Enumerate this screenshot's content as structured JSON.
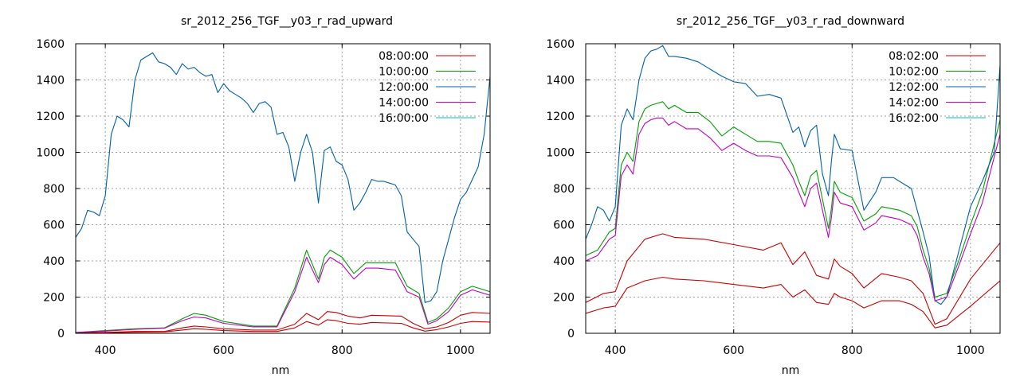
{
  "chart_data": [
    {
      "type": "line",
      "title": "sr_2012_256_TGF__y03_r_rad_upward",
      "xlabel": "nm",
      "ylabel": "",
      "xlim": [
        350,
        1050
      ],
      "ylim": [
        0,
        1600
      ],
      "xticks": [
        400,
        600,
        800,
        1000
      ],
      "yticks": [
        0,
        200,
        400,
        600,
        800,
        1000,
        1200,
        1400,
        1600
      ],
      "grid": true,
      "legend_position": "top-right",
      "series": [
        {
          "name": "08:00:00",
          "color": "#cc0000",
          "x": [
            350,
            400,
            450,
            500,
            530,
            550,
            570,
            600,
            650,
            690,
            720,
            740,
            760,
            775,
            790,
            810,
            830,
            850,
            900,
            920,
            940,
            960,
            980,
            1000,
            1020,
            1050
          ],
          "y": [
            2,
            5,
            10,
            10,
            30,
            40,
            35,
            25,
            18,
            18,
            50,
            110,
            75,
            120,
            115,
            95,
            85,
            100,
            95,
            55,
            25,
            35,
            60,
            100,
            115,
            110
          ]
        },
        {
          "name": "08:00:00",
          "color": "#cc0000",
          "x": [
            350,
            400,
            450,
            500,
            530,
            550,
            570,
            600,
            650,
            690,
            720,
            740,
            760,
            775,
            790,
            810,
            830,
            850,
            900,
            920,
            940,
            960,
            980,
            1000,
            1020,
            1050
          ],
          "y": [
            1,
            3,
            6,
            8,
            18,
            25,
            22,
            15,
            10,
            10,
            30,
            65,
            45,
            75,
            70,
            55,
            50,
            60,
            55,
            30,
            12,
            20,
            35,
            55,
            65,
            62
          ]
        },
        {
          "name": "10:00:00",
          "color": "#00a000",
          "x": [
            350,
            400,
            450,
            500,
            530,
            550,
            570,
            600,
            650,
            690,
            720,
            740,
            760,
            770,
            780,
            800,
            820,
            840,
            860,
            890,
            910,
            930,
            945,
            960,
            980,
            1000,
            1020,
            1050
          ],
          "y": [
            5,
            15,
            25,
            30,
            80,
            110,
            100,
            65,
            40,
            40,
            250,
            460,
            300,
            420,
            460,
            420,
            330,
            390,
            390,
            390,
            260,
            220,
            60,
            80,
            140,
            230,
            260,
            230
          ]
        },
        {
          "name": "12:00:00",
          "color": "#0060ad",
          "x": [
            350,
            360,
            370,
            380,
            390,
            400,
            410,
            420,
            430,
            440,
            450,
            460,
            470,
            480,
            490,
            500,
            510,
            520,
            530,
            540,
            550,
            560,
            570,
            580,
            590,
            600,
            610,
            620,
            630,
            640,
            650,
            660,
            670,
            680,
            690,
            700,
            710,
            720,
            730,
            740,
            750,
            760,
            765,
            770,
            780,
            790,
            800,
            810,
            820,
            830,
            840,
            850,
            860,
            870,
            880,
            890,
            900,
            910,
            920,
            930,
            940,
            950,
            960,
            970,
            980,
            990,
            1000,
            1010,
            1020,
            1030,
            1040,
            1050
          ],
          "y": [
            530,
            580,
            680,
            670,
            650,
            760,
            1100,
            1200,
            1180,
            1140,
            1400,
            1510,
            1530,
            1550,
            1500,
            1490,
            1470,
            1430,
            1490,
            1460,
            1470,
            1440,
            1420,
            1430,
            1330,
            1380,
            1340,
            1320,
            1300,
            1270,
            1220,
            1270,
            1280,
            1250,
            1100,
            1110,
            1030,
            840,
            1000,
            1100,
            1000,
            720,
            870,
            1010,
            1030,
            950,
            930,
            850,
            680,
            720,
            780,
            850,
            840,
            840,
            830,
            820,
            760,
            560,
            520,
            480,
            170,
            180,
            230,
            400,
            520,
            640,
            740,
            780,
            850,
            920,
            1100,
            1420
          ]
        },
        {
          "name": "14:00:00",
          "color": "#c000c0",
          "x": [
            350,
            400,
            450,
            500,
            530,
            550,
            570,
            600,
            650,
            690,
            720,
            740,
            760,
            770,
            780,
            800,
            820,
            840,
            860,
            890,
            910,
            930,
            945,
            960,
            980,
            1000,
            1020,
            1050
          ],
          "y": [
            4,
            12,
            22,
            28,
            70,
            90,
            85,
            55,
            35,
            35,
            230,
            420,
            280,
            380,
            420,
            380,
            300,
            360,
            360,
            350,
            230,
            200,
            50,
            70,
            120,
            210,
            240,
            210
          ]
        },
        {
          "name": "16:00:00",
          "color": "#00bfbf",
          "x": [],
          "y": []
        }
      ]
    },
    {
      "type": "line",
      "title": "sr_2012_256_TGF__y03_r_rad_downward",
      "xlabel": "nm",
      "ylabel": "",
      "xlim": [
        350,
        1050
      ],
      "ylim": [
        0,
        1600
      ],
      "xticks": [
        400,
        600,
        800,
        1000
      ],
      "yticks": [
        0,
        200,
        400,
        600,
        800,
        1000,
        1200,
        1400,
        1600
      ],
      "grid": true,
      "legend_position": "top-right",
      "series": [
        {
          "name": "08:02:00",
          "color": "#cc0000",
          "x": [
            350,
            380,
            400,
            420,
            450,
            480,
            500,
            550,
            600,
            650,
            680,
            700,
            720,
            740,
            760,
            770,
            780,
            800,
            820,
            850,
            880,
            900,
            920,
            940,
            960,
            1000,
            1050
          ],
          "y": [
            170,
            220,
            230,
            400,
            520,
            550,
            530,
            520,
            490,
            460,
            500,
            380,
            450,
            320,
            300,
            410,
            370,
            330,
            250,
            330,
            310,
            290,
            220,
            50,
            80,
            300,
            500
          ]
        },
        {
          "name": "08:02:00",
          "color": "#cc0000",
          "x": [
            350,
            380,
            400,
            420,
            450,
            480,
            500,
            550,
            600,
            650,
            680,
            700,
            720,
            740,
            760,
            770,
            780,
            800,
            820,
            850,
            880,
            900,
            920,
            940,
            960,
            1000,
            1050
          ],
          "y": [
            110,
            140,
            150,
            250,
            290,
            310,
            300,
            290,
            270,
            250,
            270,
            200,
            240,
            170,
            160,
            220,
            200,
            180,
            140,
            180,
            180,
            160,
            120,
            30,
            45,
            150,
            290
          ]
        },
        {
          "name": "10:02:00",
          "color": "#00a000",
          "x": [
            350,
            370,
            390,
            400,
            410,
            420,
            430,
            440,
            450,
            460,
            470,
            480,
            490,
            500,
            520,
            540,
            560,
            580,
            600,
            620,
            640,
            660,
            680,
            700,
            710,
            720,
            730,
            740,
            760,
            765,
            770,
            780,
            800,
            820,
            840,
            850,
            880,
            900,
            910,
            920,
            930,
            940,
            960,
            980,
            1000,
            1020,
            1050
          ],
          "y": [
            430,
            460,
            560,
            580,
            930,
            1000,
            950,
            1170,
            1240,
            1260,
            1270,
            1280,
            1240,
            1260,
            1220,
            1220,
            1170,
            1090,
            1140,
            1100,
            1060,
            1060,
            1050,
            930,
            840,
            760,
            870,
            900,
            580,
            690,
            840,
            780,
            750,
            620,
            660,
            700,
            680,
            650,
            590,
            460,
            360,
            200,
            220,
            400,
            600,
            780,
            1180
          ]
        },
        {
          "name": "12:02:00",
          "color": "#0060ad",
          "x": [
            350,
            360,
            370,
            380,
            390,
            400,
            410,
            420,
            430,
            440,
            450,
            460,
            470,
            480,
            490,
            500,
            520,
            540,
            560,
            580,
            600,
            620,
            640,
            660,
            680,
            700,
            710,
            720,
            730,
            740,
            750,
            760,
            765,
            770,
            780,
            800,
            820,
            840,
            850,
            870,
            890,
            900,
            910,
            920,
            930,
            940,
            950,
            960,
            980,
            1000,
            1020,
            1040,
            1050
          ],
          "y": [
            520,
            600,
            700,
            680,
            620,
            700,
            1150,
            1240,
            1180,
            1400,
            1520,
            1560,
            1570,
            1590,
            1530,
            1530,
            1520,
            1500,
            1460,
            1420,
            1390,
            1380,
            1310,
            1320,
            1300,
            1110,
            1140,
            1030,
            1120,
            1150,
            880,
            760,
            950,
            1100,
            1020,
            1010,
            680,
            780,
            860,
            860,
            820,
            800,
            680,
            560,
            430,
            180,
            160,
            200,
            450,
            700,
            840,
            1000,
            1480
          ]
        },
        {
          "name": "14:02:00",
          "color": "#c000c0",
          "x": [
            350,
            370,
            390,
            400,
            410,
            420,
            430,
            440,
            450,
            460,
            470,
            480,
            490,
            500,
            520,
            540,
            560,
            580,
            600,
            620,
            640,
            660,
            680,
            700,
            710,
            720,
            730,
            740,
            760,
            765,
            770,
            780,
            800,
            820,
            840,
            850,
            880,
            900,
            910,
            920,
            930,
            940,
            960,
            980,
            1000,
            1020,
            1050
          ],
          "y": [
            400,
            430,
            520,
            540,
            870,
            930,
            880,
            1100,
            1160,
            1180,
            1190,
            1190,
            1150,
            1170,
            1130,
            1130,
            1080,
            1010,
            1050,
            1010,
            980,
            980,
            970,
            860,
            780,
            700,
            800,
            830,
            530,
            640,
            780,
            720,
            700,
            570,
            610,
            650,
            630,
            600,
            540,
            420,
            330,
            180,
            200,
            370,
            550,
            720,
            1100
          ]
        },
        {
          "name": "16:02:00",
          "color": "#00bfbf",
          "x": [],
          "y": []
        }
      ]
    }
  ]
}
